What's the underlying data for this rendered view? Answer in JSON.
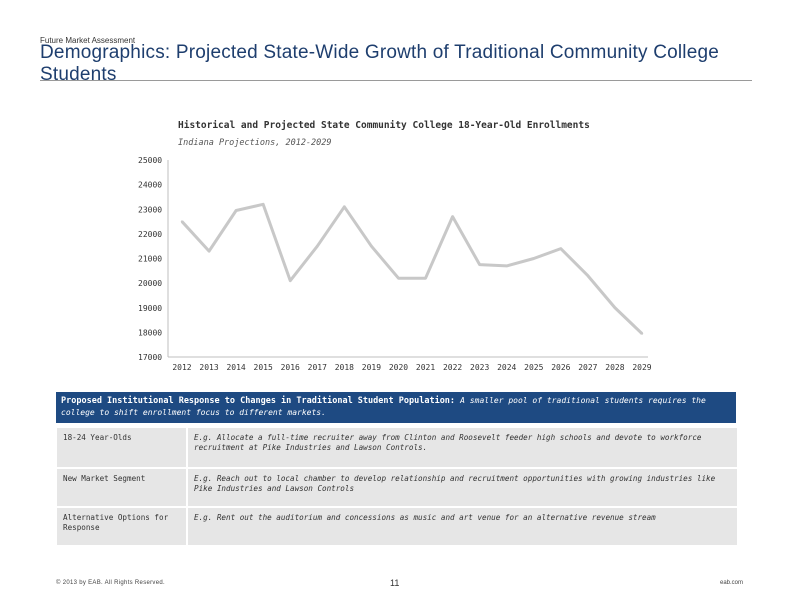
{
  "header": {
    "eyebrow": "Future Market Assessment",
    "title": "Demographics: Projected State-Wide Growth of Traditional Community College Students"
  },
  "chart_data": {
    "type": "line",
    "title": "Historical and Projected State Community College 18-Year-Old Enrollments",
    "subtitle": "Indiana Projections, 2012-2029",
    "x": [
      "2012",
      "2013",
      "2014",
      "2015",
      "2016",
      "2017",
      "2018",
      "2019",
      "2020",
      "2021",
      "2022",
      "2023",
      "2024",
      "2025",
      "2026",
      "2027",
      "2028",
      "2029"
    ],
    "series": [
      {
        "values": [
          22500,
          21300,
          22950,
          23200,
          20100,
          21500,
          23100,
          21500,
          20200,
          20200,
          22700,
          20750,
          20700,
          21000,
          21400,
          20300,
          19000,
          17950
        ]
      }
    ],
    "yticks": [
      "25000",
      "24000",
      "23000",
      "22000",
      "21000",
      "20000",
      "19000",
      "18000",
      "17000"
    ],
    "ylim": [
      17000,
      25000
    ],
    "line_color": "#c8c8c8",
    "grid": false,
    "legend": "none"
  },
  "response": {
    "banner_lead": "Proposed Institutional Response to Changes in Traditional Student Population:",
    "banner_rest": "A smaller pool of traditional students requires the college to shift enrollment focus to different markets.",
    "rows": [
      {
        "label": "18-24 Year-Olds",
        "text": "E.g. Allocate a full-time recruiter away from Clinton and Roosevelt feeder high schools and devote to workforce recruitment at Pike Industries and Lawson Controls."
      },
      {
        "label": "New Market Segment",
        "text": "E.g. Reach out to local chamber to develop relationship and recruitment opportunities with growing industries like Pike Industries and Lawson Controls"
      },
      {
        "label": "Alternative Options for Response",
        "text": "E.g. Rent out the auditorium and concessions as music and art venue for an alternative revenue stream"
      }
    ]
  },
  "footer": {
    "copyright": "© 2013 by EAB. All Rights Reserved.",
    "page_number": "11",
    "site": "eab.com"
  },
  "colors": {
    "title": "#1e3e6e",
    "banner": "#1e4a82",
    "cell": "#e6e6e6"
  }
}
